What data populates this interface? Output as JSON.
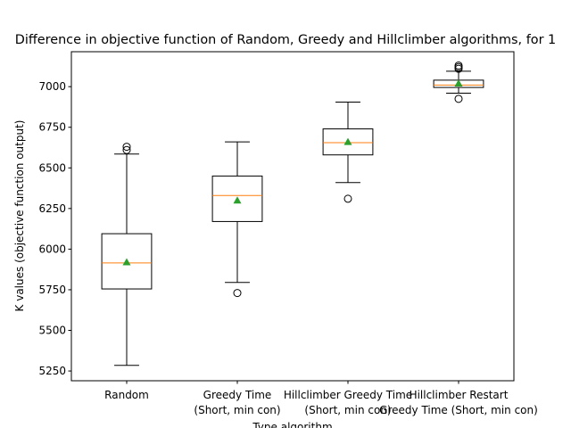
{
  "chart_data": {
    "type": "boxplot",
    "title": "Difference in objective function of Random, Greedy and Hillclimber algorithms, for 1",
    "xlabel": "Type algorithm",
    "ylabel": "K values (objective function output)",
    "ylim": [
      5190,
      7215
    ],
    "yticks": [
      5250,
      5500,
      5750,
      6000,
      6250,
      6500,
      6750,
      7000
    ],
    "ytick_labels": [
      "5250",
      "5500",
      "5750",
      "6000",
      "6250",
      "6500",
      "6750",
      "7000"
    ],
    "grid": false,
    "categories": [
      {
        "line1": "Random",
        "line2": ""
      },
      {
        "line1": "Greedy Time",
        "line2": "(Short, min con)"
      },
      {
        "line1": "Hillclimber Greedy Time",
        "line2": "(Short, min con)"
      },
      {
        "line1": "Hillclimber Restart",
        "line2": "Greedy Time (Short, min con)"
      }
    ],
    "boxes": [
      {
        "whisker_low": 5285,
        "q1": 5755,
        "median": 5915,
        "q3": 6095,
        "whisker_high": 6585,
        "mean": 5920,
        "fliers": [
          6610,
          6630
        ]
      },
      {
        "whisker_low": 5795,
        "q1": 6170,
        "median": 6330,
        "q3": 6450,
        "whisker_high": 6660,
        "mean": 6300,
        "fliers": [
          5730
        ]
      },
      {
        "whisker_low": 6410,
        "q1": 6580,
        "median": 6655,
        "q3": 6740,
        "whisker_high": 6905,
        "mean": 6660,
        "fliers": [
          6310
        ]
      },
      {
        "whisker_low": 6960,
        "q1": 6995,
        "median": 7010,
        "q3": 7040,
        "whisker_high": 7095,
        "mean": 7020,
        "fliers": [
          6925,
          7110,
          7120,
          7130
        ]
      }
    ],
    "colors": {
      "box": "#000000",
      "median": "#ff7f0e",
      "mean": "#2ca02c",
      "axes": "#000000"
    }
  }
}
